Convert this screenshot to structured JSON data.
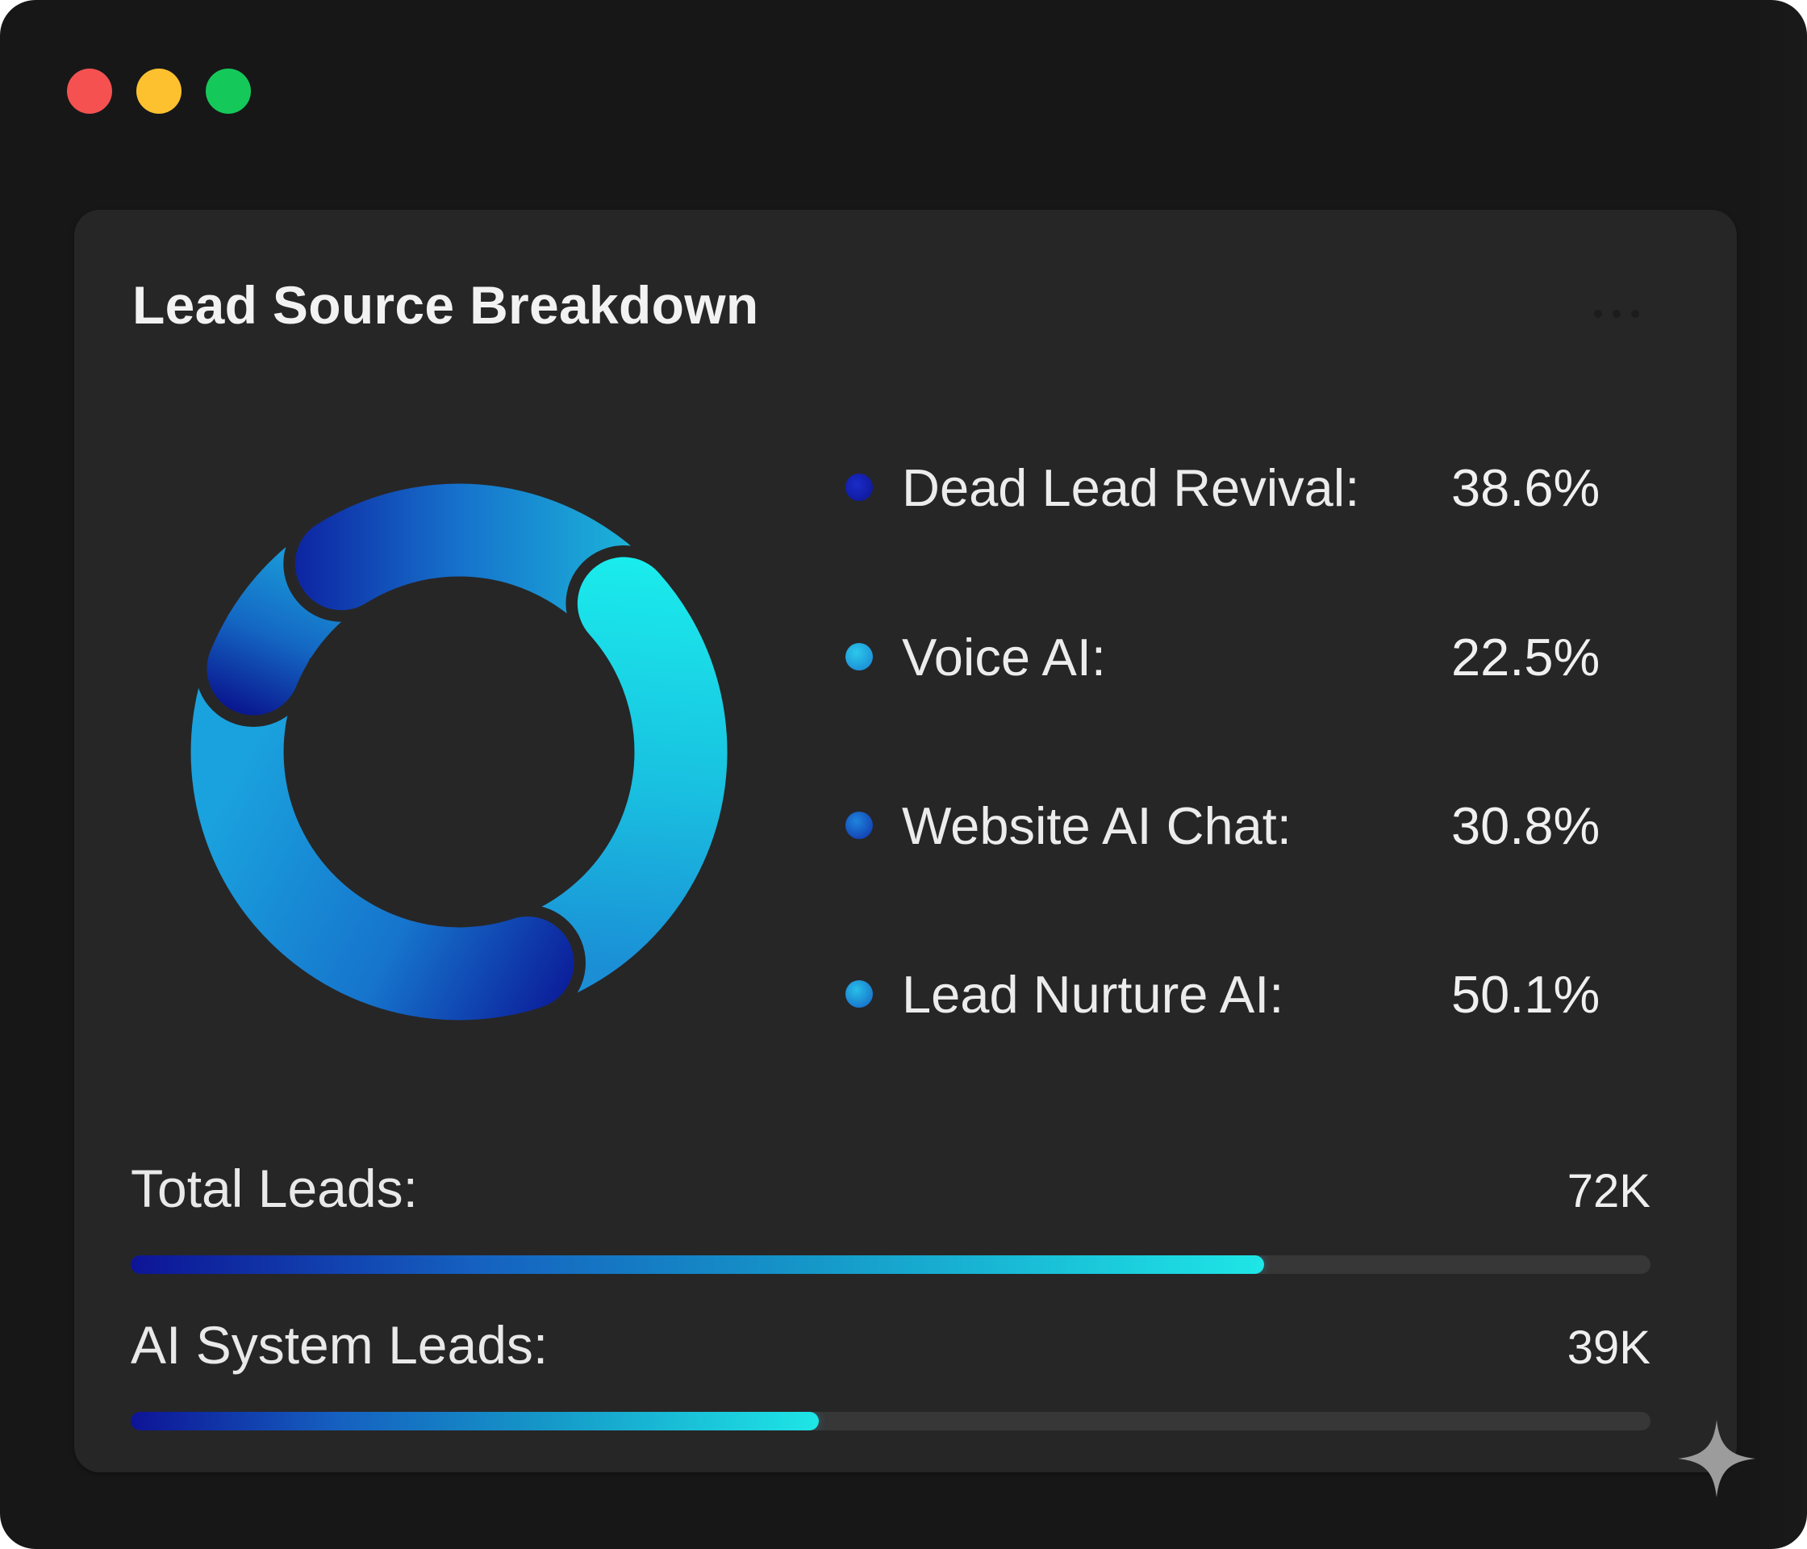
{
  "window": {
    "controls": [
      {
        "name": "close",
        "color": "#f55151"
      },
      {
        "name": "minimize",
        "color": "#fdc12f"
      },
      {
        "name": "maximize",
        "color": "#14c95a"
      }
    ]
  },
  "card": {
    "title": "Lead Source Breakdown",
    "menu_icon": "more-horizontal-icon"
  },
  "legend": [
    {
      "label": "Dead Lead Revival:",
      "value": "38.6%",
      "color": "#1522b4"
    },
    {
      "label": "Voice AI:",
      "value": "22.5%",
      "color": "#22b2e6"
    },
    {
      "label": "Website AI Chat:",
      "value": "30.8%",
      "color": "#1a6fd0"
    },
    {
      "label": "Lead Nurture AI:",
      "value": "50.1%",
      "color": "#1f9fe0"
    }
  ],
  "metrics": [
    {
      "label": "Total Leads:",
      "value": "72K",
      "fill_percent": 74.6
    },
    {
      "label": "AI System Leads:",
      "value": "39K",
      "fill_percent": 45.3
    }
  ],
  "colors": {
    "window_bg": "#171718",
    "card_bg": "#262627",
    "gradient_dark": "#0d1496",
    "gradient_light": "#1ee6e6",
    "track": "#373738"
  },
  "corner_icon": "sparkle-icon",
  "chart_data": [
    {
      "type": "pie",
      "title": "Lead Source Breakdown",
      "variant": "donut",
      "categories": [
        "Dead Lead Revival",
        "Voice AI",
        "Website AI Chat",
        "Lead Nurture AI"
      ],
      "values": [
        38.6,
        22.5,
        30.8,
        50.1
      ],
      "unit": "%",
      "legend_position": "right"
    },
    {
      "type": "bar",
      "orientation": "horizontal",
      "categories": [
        "Total Leads",
        "AI System Leads"
      ],
      "values": [
        72000,
        39000
      ],
      "value_labels": [
        "72K",
        "39K"
      ],
      "bar_fill_fraction_visual": [
        0.746,
        0.453
      ]
    }
  ]
}
